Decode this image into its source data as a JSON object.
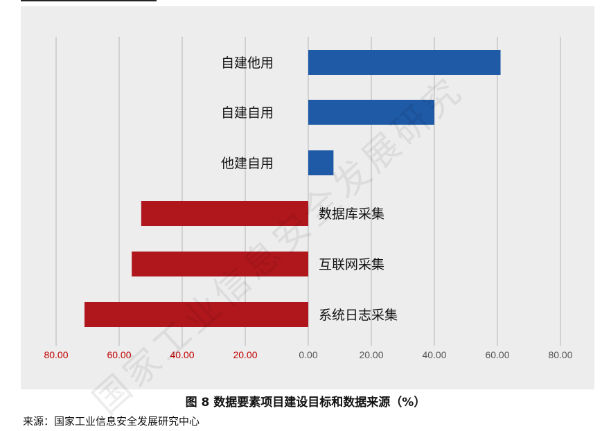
{
  "figure": {
    "caption": "图 8 数据要素项目建设目标和数据来源（%）",
    "source": "来源：国家工业信息安全发展研究中心",
    "watermark": "国家工业信息安全发展研究"
  },
  "chart_data": {
    "type": "bar",
    "orientation": "horizontal-diverging",
    "title": "",
    "xlabel": "",
    "ylabel": "",
    "xlim": [
      -80,
      80
    ],
    "tick_values": [
      -80,
      -60,
      -40,
      -20,
      0,
      20,
      40,
      60,
      80
    ],
    "tick_labels": [
      "80.00",
      "60.00",
      "40.00",
      "20.00",
      "0.00",
      "20.00",
      "40.00",
      "60.00",
      "80.00"
    ],
    "grid": true,
    "categories": [
      "自建他用",
      "自建自用",
      "他建自用",
      "数据库采集",
      "互联网采集",
      "系统日志采集"
    ],
    "values": [
      61,
      40,
      8,
      -53,
      -56,
      -71
    ],
    "colors": {
      "positive": "#1f5aa6",
      "negative": "#b0171d",
      "negative_tick": "#c00000",
      "positive_tick": "#555555"
    }
  }
}
